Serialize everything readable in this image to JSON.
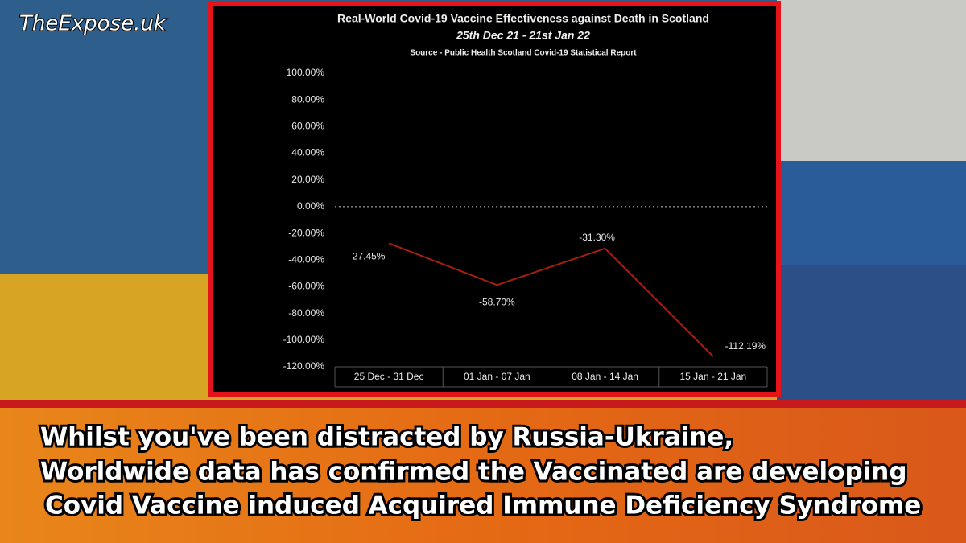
{
  "watermark": "TheExpose.uk",
  "headline": [
    "Whilst you've been distracted by Russia-Ukraine,",
    "Worldwide data has confirmed the Vaccinated are developing",
    "Covid Vaccine induced Acquired Immune Deficiency Syndrome"
  ],
  "chart_data": {
    "type": "line",
    "title": "Real-World Covid-19 Vaccine Effectiveness against Death in Scotland",
    "subtitle": "25th Dec 21 - 21st Jan 22",
    "source": "Source - Public Health Scotland Covid-19 Statistical Report",
    "categories": [
      "25 Dec - 31 Dec",
      "01 Jan - 07 Jan",
      "08 Jan - 14 Jan",
      "15 Jan - 21 Jan"
    ],
    "values": [
      -27.45,
      -58.7,
      -31.3,
      -112.19
    ],
    "value_labels": [
      "-27.45%",
      "-58.70%",
      "-31.30%",
      "-112.19%"
    ],
    "color": "#a81e12",
    "ylim": [
      -120,
      100
    ],
    "yticks": [
      {
        "value": 100,
        "label": "100.00%"
      },
      {
        "value": 80,
        "label": "80.00%"
      },
      {
        "value": 60,
        "label": "60.00%"
      },
      {
        "value": 40,
        "label": "40.00%"
      },
      {
        "value": 20,
        "label": "20.00%"
      },
      {
        "value": 0,
        "label": "0.00%"
      },
      {
        "value": -20,
        "label": "-20.00%"
      },
      {
        "value": -40,
        "label": "-40.00%"
      },
      {
        "value": -60,
        "label": "-60.00%"
      },
      {
        "value": -80,
        "label": "-80.00%"
      },
      {
        "value": -100,
        "label": "-100.00%"
      },
      {
        "value": -120,
        "label": "-120.00%"
      }
    ]
  }
}
